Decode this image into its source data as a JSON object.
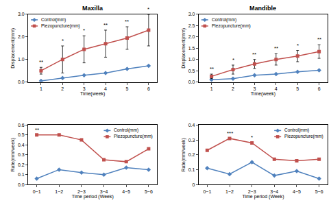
{
  "chart_data": [
    {
      "type": "line",
      "title": "Maxilla",
      "x_label": "Time(week)",
      "y_label": "Displacement(mm)",
      "x": [
        1,
        2,
        3,
        4,
        5,
        6
      ],
      "xlim": [
        0.4,
        6.4
      ],
      "xticks": [
        1,
        2,
        3,
        4,
        5,
        6
      ],
      "ylim": [
        0,
        3
      ],
      "yticks": [
        {
          "value": 0,
          "label": "0.0"
        },
        {
          "value": 1,
          "label": "1.0"
        },
        {
          "value": 2,
          "label": "2.0"
        },
        {
          "value": 3,
          "label": "3.0"
        }
      ],
      "grid": false,
      "legend": "top left",
      "series": [
        {
          "name": "Control(mm)",
          "color": "#4f81bd",
          "marker": "diamond",
          "values": [
            0.05,
            0.18,
            0.3,
            0.4,
            0.58,
            0.72
          ]
        },
        {
          "name": "Piezopuncture(mm)",
          "color": "#c0504d",
          "marker": "square",
          "values": [
            0.5,
            1.0,
            1.45,
            1.7,
            1.95,
            2.3
          ],
          "error": [
            0.15,
            0.6,
            0.6,
            0.6,
            0.5,
            0.7
          ]
        }
      ],
      "annotations": [
        {
          "x": 1,
          "text": "**"
        },
        {
          "x": 2,
          "text": "*"
        },
        {
          "x": 3,
          "text": "*"
        },
        {
          "x": 4,
          "text": "**"
        },
        {
          "x": 5,
          "text": "**"
        },
        {
          "x": 6,
          "text": "*"
        }
      ]
    },
    {
      "type": "line",
      "title": "Mandible",
      "x_label": "Time(week)",
      "y_label": "Displacement(mm)",
      "x": [
        1,
        2,
        3,
        4,
        5,
        6
      ],
      "xlim": [
        0.4,
        6.4
      ],
      "xticks": [
        1,
        2,
        3,
        4,
        5,
        6
      ],
      "ylim": [
        0,
        3
      ],
      "yticks": [
        {
          "value": 0,
          "label": "0.0"
        },
        0.5,
        {
          "value": 1,
          "label": "1.0"
        },
        1.5,
        {
          "value": 2,
          "label": "2.0"
        },
        2.5,
        {
          "value": 3,
          "label": "3.0"
        }
      ],
      "grid": false,
      "legend": "top left",
      "series": [
        {
          "name": "Control(mm)",
          "color": "#4f81bd",
          "marker": "diamond",
          "values": [
            0.1,
            0.15,
            0.3,
            0.35,
            0.45,
            0.52
          ]
        },
        {
          "name": "Piezopuncture(mm)",
          "color": "#c0504d",
          "marker": "square",
          "values": [
            0.25,
            0.55,
            0.8,
            1.0,
            1.15,
            1.35
          ],
          "error": [
            0.1,
            0.2,
            0.2,
            0.25,
            0.25,
            0.3
          ]
        }
      ],
      "annotations": [
        {
          "x": 1,
          "text": "**"
        },
        {
          "x": 2,
          "text": "*"
        },
        {
          "x": 3,
          "text": "**"
        },
        {
          "x": 4,
          "text": "**"
        },
        {
          "x": 5,
          "text": "*"
        },
        {
          "x": 6,
          "text": "**"
        }
      ]
    },
    {
      "type": "line",
      "x_label": "Time period (Week)",
      "y_label": "Rate(mm/week)",
      "categories": [
        "0~1",
        "1~2",
        "2~3",
        "3~4",
        "4~5",
        "5~6"
      ],
      "ylim": [
        0,
        0.6
      ],
      "yticks": [
        {
          "value": 0,
          "label": "0.0"
        },
        0.1,
        0.2,
        0.3,
        0.4,
        0.5,
        0.6
      ],
      "grid": false,
      "legend": "top right",
      "series": [
        {
          "name": "Control(mm)",
          "color": "#4f81bd",
          "marker": "diamond",
          "values": [
            0.06,
            0.15,
            0.12,
            0.1,
            0.17,
            0.15
          ]
        },
        {
          "name": "Piezopuncture(mm)",
          "color": "#c0504d",
          "marker": "square",
          "values": [
            0.5,
            0.5,
            0.45,
            0.25,
            0.23,
            0.36
          ]
        }
      ],
      "annotations": [
        {
          "x": "0~1",
          "text": "**"
        }
      ]
    },
    {
      "type": "line",
      "x_label": "Time period (Week)",
      "y_label": "Rate(mm/week)",
      "categories": [
        "0~1",
        "1~2",
        "2~3",
        "3~4",
        "4~5",
        "5~6"
      ],
      "ylim": [
        0,
        0.4
      ],
      "yticks": [
        0,
        0.1,
        0.2,
        0.3,
        0.4
      ],
      "grid": false,
      "legend": "top right",
      "series": [
        {
          "name": "Control(mm)",
          "color": "#4f81bd",
          "marker": "diamond",
          "values": [
            0.11,
            0.07,
            0.15,
            0.06,
            0.09,
            0.04
          ]
        },
        {
          "name": "Piezopuncture(mm)",
          "color": "#c0504d",
          "marker": "square",
          "values": [
            0.23,
            0.31,
            0.28,
            0.17,
            0.16,
            0.17
          ]
        }
      ],
      "annotations": [
        {
          "x": "1~2",
          "text": "***"
        },
        {
          "x": "2~3",
          "text": "*"
        }
      ]
    }
  ]
}
